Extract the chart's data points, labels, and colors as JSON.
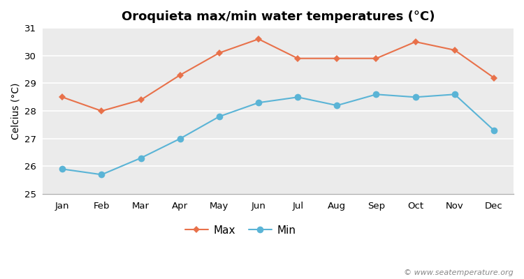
{
  "title": "Oroquieta max/min water temperatures (°C)",
  "ylabel": "Celcius (°C)",
  "months": [
    "Jan",
    "Feb",
    "Mar",
    "Apr",
    "May",
    "Jun",
    "Jul",
    "Aug",
    "Sep",
    "Oct",
    "Nov",
    "Dec"
  ],
  "max_temps": [
    28.5,
    28.0,
    28.4,
    29.3,
    30.1,
    30.6,
    29.9,
    29.9,
    29.9,
    30.5,
    30.2,
    29.2
  ],
  "min_temps": [
    25.9,
    25.7,
    26.3,
    27.0,
    27.8,
    28.3,
    28.5,
    28.2,
    28.6,
    28.5,
    28.6,
    27.3
  ],
  "max_color": "#e8714a",
  "min_color": "#5ab4d6",
  "figure_bg_color": "#ffffff",
  "plot_bg_color": "#ebebeb",
  "grid_color": "#ffffff",
  "bottom_spine_color": "#aaaaaa",
  "ylim": [
    25,
    31
  ],
  "yticks": [
    25,
    26,
    27,
    28,
    29,
    30,
    31
  ],
  "watermark": "© www.seatemperature.org",
  "title_fontsize": 13,
  "label_fontsize": 10,
  "tick_fontsize": 9.5,
  "watermark_fontsize": 8
}
